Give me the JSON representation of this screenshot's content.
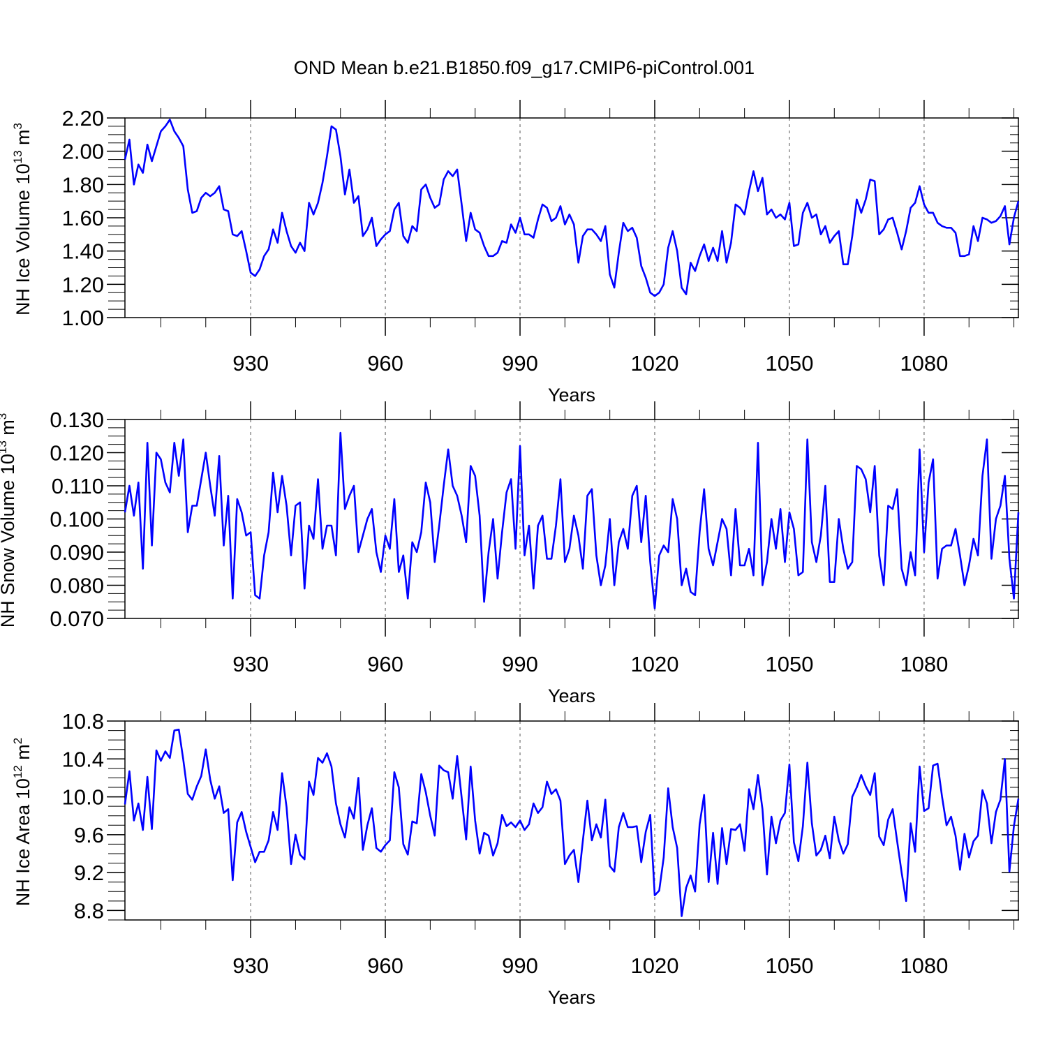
{
  "chart_data": {
    "type": "line",
    "title": "OND Mean b.e21.B1850.f09_g17.CMIP6-piControl.001",
    "color": "#0000ff",
    "x_start": 902,
    "x_end": 1101,
    "xlim": [
      902,
      1101
    ],
    "x_major_ticks": [
      930,
      960,
      990,
      1020,
      1050,
      1080
    ],
    "x_minor_ticks": [
      910,
      920,
      940,
      950,
      970,
      980,
      1000,
      1010,
      1030,
      1040,
      1060,
      1070,
      1090,
      1100
    ],
    "panels": [
      {
        "name": "ice-volume",
        "ylabel": "NH Ice Volume 10",
        "ylabel_exp": "13",
        "ylabel_unit": " m",
        "ylabel_unit_exp": "3",
        "xlabel": "Years",
        "ylim": [
          1.0,
          2.2
        ],
        "yticks": [
          1.0,
          1.2,
          1.4,
          1.6,
          1.8,
          2.0,
          2.2
        ],
        "ytick_labels": [
          "1.00",
          "1.20",
          "1.40",
          "1.60",
          "1.80",
          "2.00",
          "2.20"
        ],
        "yminor_step": 0.05,
        "values": [
          1.95,
          2.07,
          1.8,
          1.92,
          1.87,
          2.04,
          1.94,
          2.03,
          2.12,
          2.15,
          2.19,
          2.12,
          2.08,
          2.03,
          1.77,
          1.63,
          1.64,
          1.72,
          1.75,
          1.73,
          1.75,
          1.79,
          1.65,
          1.64,
          1.5,
          1.49,
          1.52,
          1.4,
          1.27,
          1.25,
          1.29,
          1.37,
          1.41,
          1.53,
          1.45,
          1.63,
          1.52,
          1.43,
          1.39,
          1.45,
          1.4,
          1.69,
          1.62,
          1.69,
          1.81,
          1.97,
          2.15,
          2.13,
          1.97,
          1.74,
          1.89,
          1.69,
          1.73,
          1.49,
          1.53,
          1.6,
          1.43,
          1.47,
          1.5,
          1.52,
          1.65,
          1.69,
          1.49,
          1.45,
          1.55,
          1.52,
          1.77,
          1.8,
          1.72,
          1.66,
          1.68,
          1.83,
          1.88,
          1.85,
          1.89,
          1.68,
          1.46,
          1.63,
          1.53,
          1.51,
          1.43,
          1.37,
          1.37,
          1.39,
          1.46,
          1.45,
          1.56,
          1.51,
          1.6,
          1.5,
          1.5,
          1.48,
          1.59,
          1.68,
          1.66,
          1.58,
          1.6,
          1.67,
          1.56,
          1.62,
          1.56,
          1.33,
          1.49,
          1.53,
          1.53,
          1.5,
          1.46,
          1.55,
          1.26,
          1.18,
          1.39,
          1.57,
          1.52,
          1.54,
          1.48,
          1.31,
          1.24,
          1.15,
          1.13,
          1.15,
          1.2,
          1.42,
          1.52,
          1.4,
          1.18,
          1.14,
          1.33,
          1.28,
          1.37,
          1.44,
          1.34,
          1.42,
          1.34,
          1.52,
          1.33,
          1.45,
          1.68,
          1.66,
          1.62,
          1.76,
          1.88,
          1.76,
          1.84,
          1.62,
          1.65,
          1.6,
          1.62,
          1.59,
          1.69,
          1.43,
          1.44,
          1.63,
          1.69,
          1.6,
          1.62,
          1.5,
          1.55,
          1.45,
          1.49,
          1.52,
          1.32,
          1.32,
          1.49,
          1.71,
          1.63,
          1.71,
          1.83,
          1.82,
          1.5,
          1.53,
          1.59,
          1.6,
          1.51,
          1.41,
          1.52,
          1.66,
          1.69,
          1.79,
          1.68,
          1.63,
          1.63,
          1.57,
          1.55,
          1.54,
          1.54,
          1.51,
          1.37,
          1.37,
          1.38,
          1.55,
          1.46,
          1.6,
          1.59,
          1.57,
          1.58,
          1.61,
          1.67,
          1.44,
          1.6,
          1.7
        ]
      },
      {
        "name": "snow-volume",
        "ylabel": "NH Snow Volume 10",
        "ylabel_exp": "13",
        "ylabel_unit": " m",
        "ylabel_unit_exp": "3",
        "xlabel": "Years",
        "ylim": [
          0.07,
          0.13
        ],
        "yticks": [
          0.07,
          0.08,
          0.09,
          0.1,
          0.11,
          0.12,
          0.13
        ],
        "ytick_labels": [
          "0.070",
          "0.080",
          "0.090",
          "0.100",
          "0.110",
          "0.120",
          "0.130"
        ],
        "yminor_step": 0.0025,
        "values": [
          0.102,
          0.11,
          0.101,
          0.111,
          0.085,
          0.123,
          0.092,
          0.12,
          0.118,
          0.111,
          0.108,
          0.123,
          0.113,
          0.124,
          0.096,
          0.104,
          0.104,
          0.112,
          0.12,
          0.11,
          0.101,
          0.119,
          0.092,
          0.107,
          0.076,
          0.106,
          0.102,
          0.095,
          0.096,
          0.077,
          0.076,
          0.089,
          0.096,
          0.114,
          0.102,
          0.113,
          0.104,
          0.089,
          0.104,
          0.105,
          0.079,
          0.098,
          0.094,
          0.112,
          0.091,
          0.098,
          0.098,
          0.089,
          0.126,
          0.103,
          0.107,
          0.11,
          0.09,
          0.095,
          0.1,
          0.103,
          0.09,
          0.084,
          0.095,
          0.091,
          0.106,
          0.084,
          0.089,
          0.076,
          0.093,
          0.09,
          0.096,
          0.111,
          0.105,
          0.087,
          0.098,
          0.11,
          0.121,
          0.11,
          0.107,
          0.101,
          0.093,
          0.116,
          0.113,
          0.101,
          0.075,
          0.09,
          0.1,
          0.082,
          0.096,
          0.108,
          0.112,
          0.091,
          0.122,
          0.089,
          0.098,
          0.079,
          0.098,
          0.101,
          0.088,
          0.088,
          0.098,
          0.112,
          0.087,
          0.091,
          0.101,
          0.095,
          0.085,
          0.107,
          0.109,
          0.089,
          0.08,
          0.086,
          0.1,
          0.08,
          0.093,
          0.097,
          0.091,
          0.107,
          0.11,
          0.093,
          0.107,
          0.087,
          0.073,
          0.089,
          0.092,
          0.09,
          0.106,
          0.1,
          0.08,
          0.085,
          0.078,
          0.077,
          0.096,
          0.109,
          0.091,
          0.086,
          0.093,
          0.1,
          0.097,
          0.083,
          0.103,
          0.086,
          0.086,
          0.091,
          0.083,
          0.123,
          0.08,
          0.087,
          0.1,
          0.091,
          0.103,
          0.087,
          0.102,
          0.097,
          0.083,
          0.084,
          0.124,
          0.093,
          0.087,
          0.095,
          0.11,
          0.081,
          0.081,
          0.1,
          0.091,
          0.085,
          0.087,
          0.116,
          0.115,
          0.112,
          0.102,
          0.116,
          0.089,
          0.08,
          0.104,
          0.103,
          0.109,
          0.085,
          0.08,
          0.09,
          0.083,
          0.121,
          0.09,
          0.111,
          0.118,
          0.082,
          0.091,
          0.092,
          0.092,
          0.097,
          0.089,
          0.08,
          0.086,
          0.094,
          0.089,
          0.113,
          0.124,
          0.088,
          0.1,
          0.104,
          0.113,
          0.088,
          0.076,
          0.102
        ]
      },
      {
        "name": "ice-area",
        "ylabel": "NH Ice Area 10",
        "ylabel_exp": "12",
        "ylabel_unit": " m",
        "ylabel_unit_exp": "2",
        "xlabel": "Years",
        "ylim": [
          8.7,
          10.8
        ],
        "yticks": [
          8.8,
          9.2,
          9.6,
          10.0,
          10.4,
          10.8
        ],
        "ytick_labels": [
          "8.8",
          "9.2",
          "9.6",
          "10.0",
          "10.4",
          "10.8"
        ],
        "yminor_step": 0.1,
        "values": [
          9.92,
          10.27,
          9.75,
          9.93,
          9.65,
          10.21,
          9.66,
          10.49,
          10.38,
          10.48,
          10.41,
          10.7,
          10.71,
          10.39,
          10.03,
          9.97,
          10.11,
          10.22,
          10.5,
          10.18,
          9.98,
          10.11,
          9.83,
          9.87,
          9.12,
          9.73,
          9.84,
          9.63,
          9.47,
          9.31,
          9.42,
          9.42,
          9.54,
          9.84,
          9.65,
          10.25,
          9.89,
          9.29,
          9.6,
          9.39,
          9.34,
          10.16,
          10.02,
          10.41,
          10.36,
          10.46,
          10.32,
          9.93,
          9.71,
          9.57,
          9.89,
          9.77,
          10.2,
          9.44,
          9.7,
          9.88,
          9.46,
          9.42,
          9.49,
          9.54,
          10.26,
          10.1,
          9.5,
          9.39,
          9.74,
          9.72,
          10.24,
          10.05,
          9.8,
          9.59,
          10.33,
          10.28,
          10.26,
          9.98,
          10.43,
          9.99,
          9.55,
          10.32,
          9.75,
          9.4,
          9.62,
          9.59,
          9.38,
          9.51,
          9.81,
          9.69,
          9.73,
          9.68,
          9.75,
          9.65,
          9.71,
          9.93,
          9.83,
          9.89,
          10.16,
          10.03,
          10.08,
          9.96,
          9.29,
          9.38,
          9.44,
          9.1,
          9.54,
          9.96,
          9.54,
          9.71,
          9.57,
          9.97,
          9.27,
          9.21,
          9.68,
          9.83,
          9.68,
          9.68,
          9.69,
          9.31,
          9.63,
          9.81,
          8.96,
          9.01,
          9.36,
          10.09,
          9.68,
          9.46,
          8.74,
          9.04,
          9.17,
          9.0,
          9.71,
          10.02,
          9.1,
          9.62,
          9.08,
          9.67,
          9.29,
          9.66,
          9.65,
          9.71,
          9.43,
          10.08,
          9.87,
          10.23,
          9.87,
          9.18,
          9.79,
          9.51,
          9.75,
          9.83,
          10.34,
          9.52,
          9.32,
          9.69,
          10.36,
          9.72,
          9.38,
          9.44,
          9.59,
          9.35,
          9.79,
          9.54,
          9.4,
          9.5,
          10.0,
          10.1,
          10.23,
          10.11,
          10.02,
          10.25,
          9.58,
          9.49,
          9.76,
          9.87,
          9.53,
          9.2,
          8.9,
          9.72,
          9.42,
          10.32,
          9.85,
          9.88,
          10.33,
          10.35,
          10.0,
          9.7,
          9.79,
          9.59,
          9.23,
          9.61,
          9.36,
          9.53,
          9.59,
          10.07,
          9.93,
          9.51,
          9.84,
          9.97,
          10.4,
          9.21,
          9.69,
          9.98
        ]
      }
    ]
  }
}
